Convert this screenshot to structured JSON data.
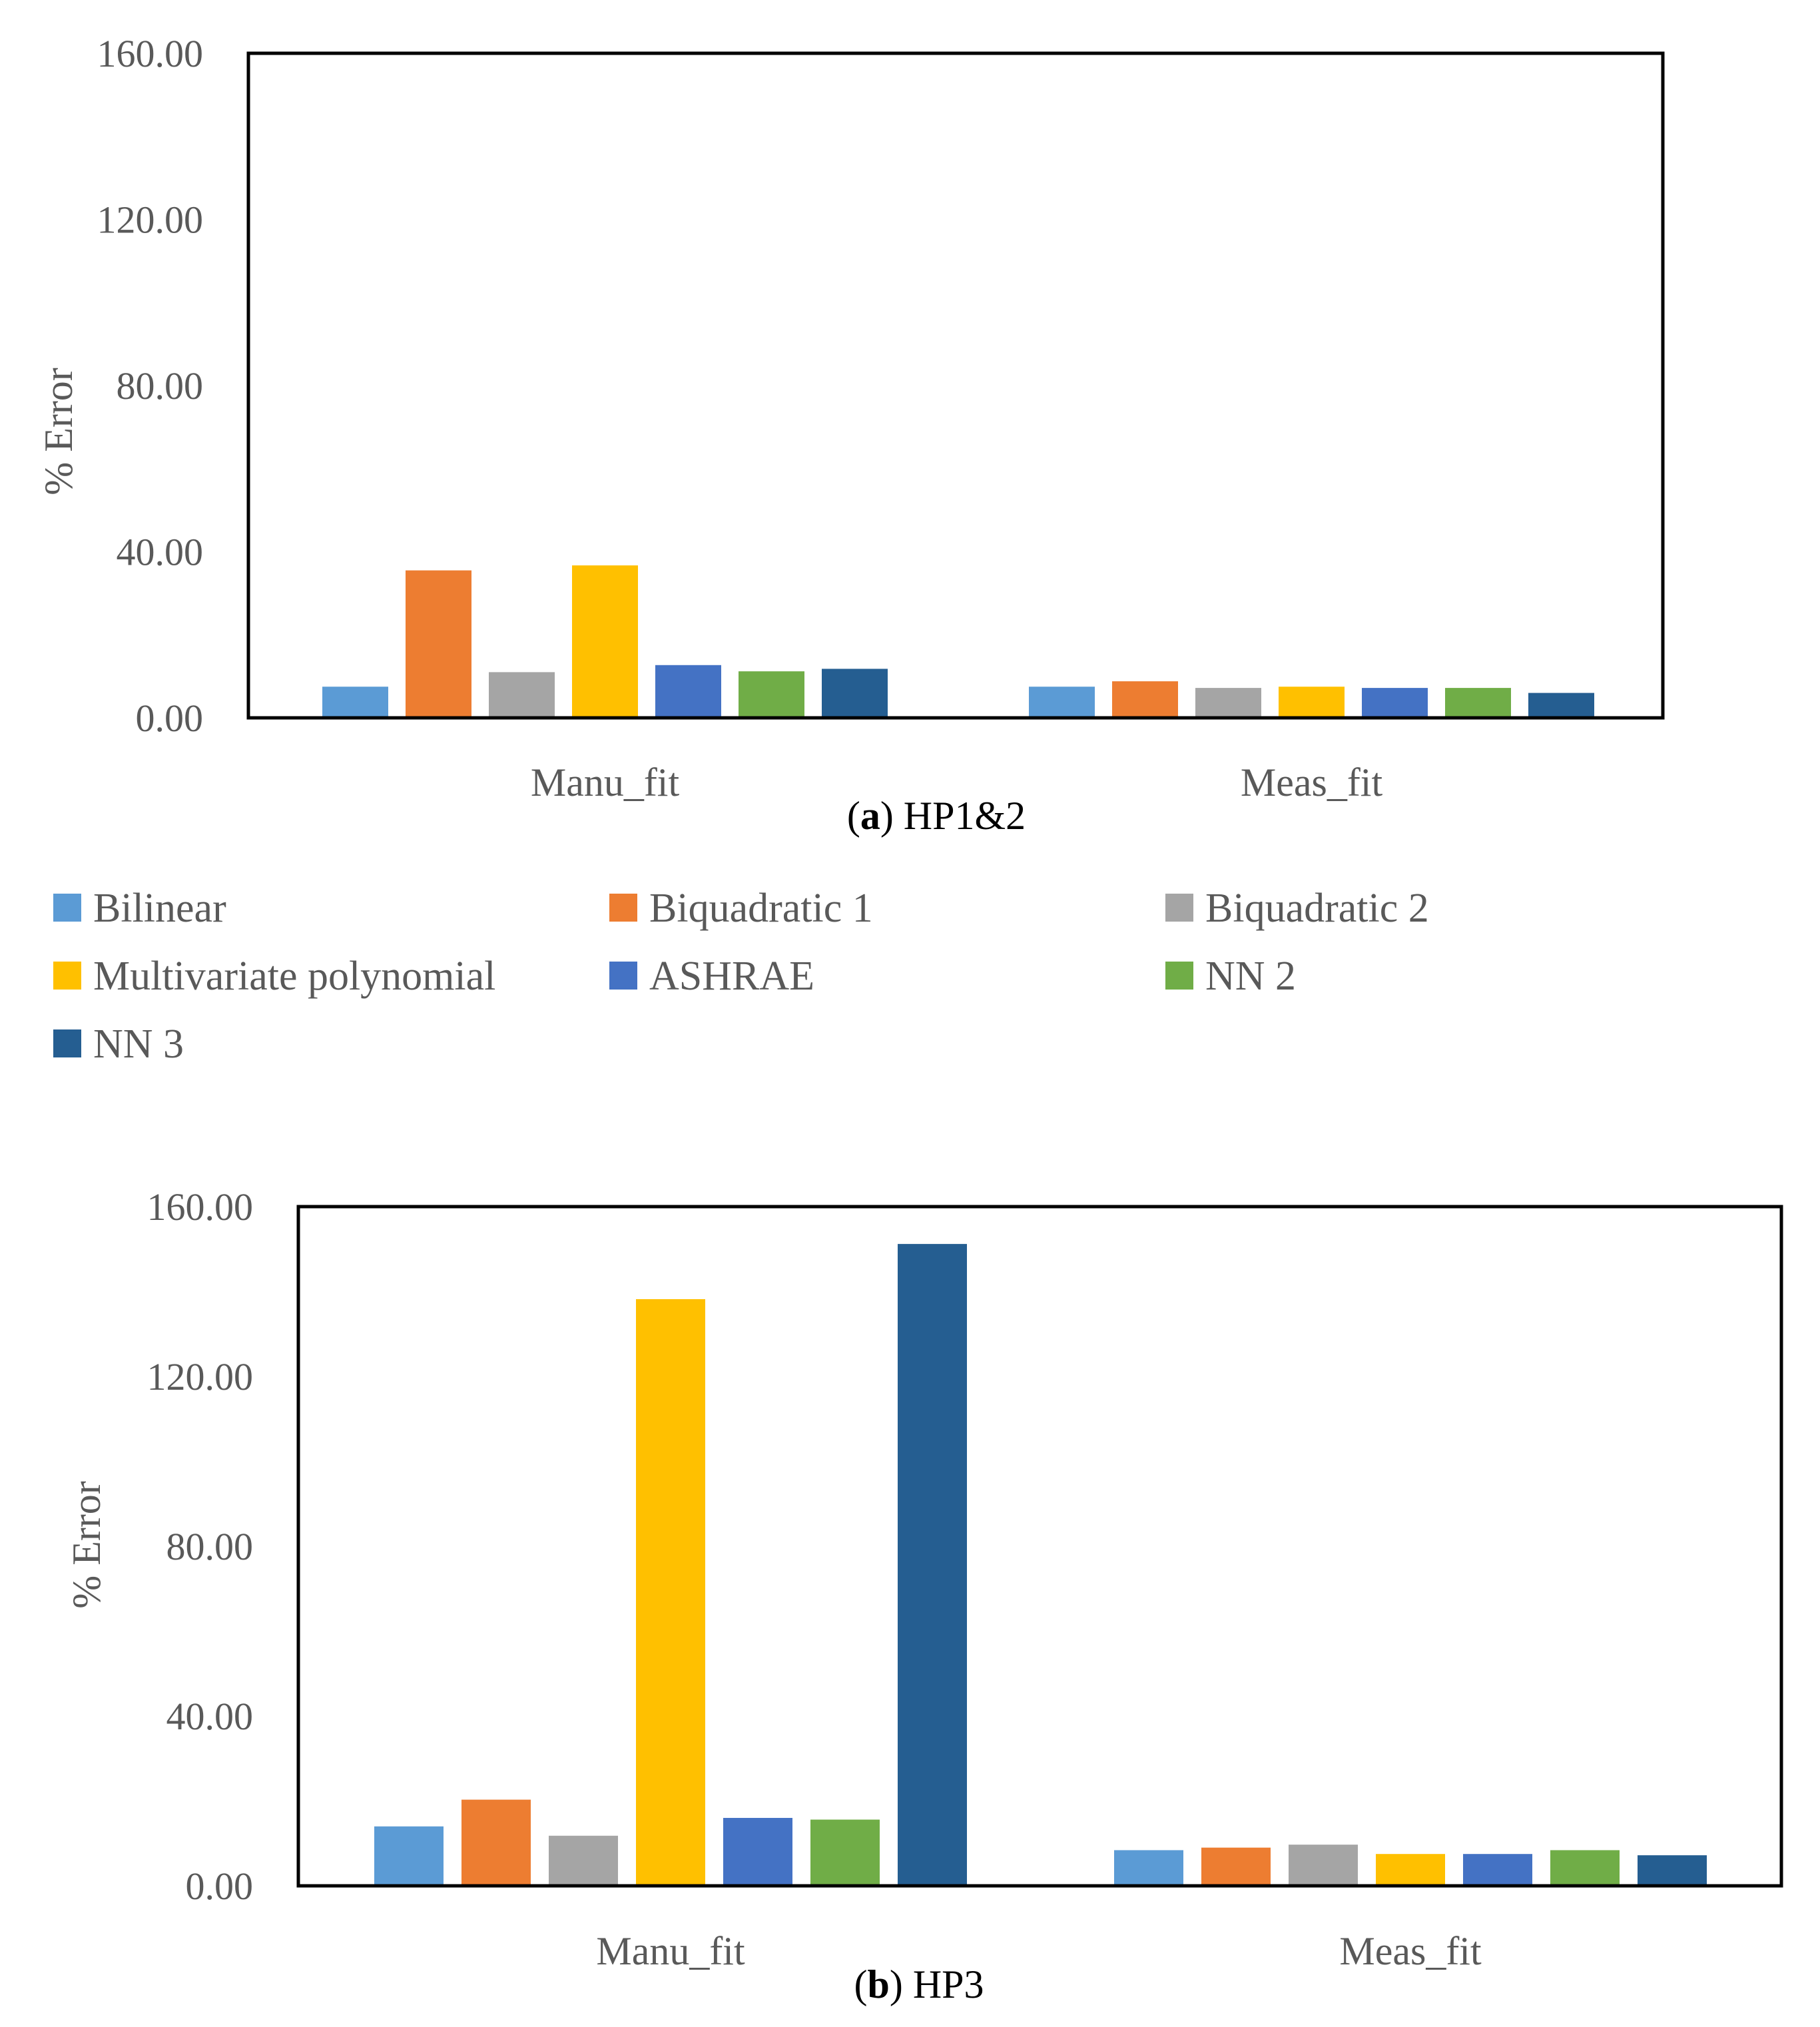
{
  "colors": {
    "Bilinear": "#5B9BD5",
    "Biquadratic 1": "#ED7D31",
    "Biquadratic 2": "#A5A5A5",
    "Multivariate polynomial": "#FFC000",
    "ASHRAE": "#4472C4",
    "NN 2": "#70AD47",
    "NN 3": "#255E91",
    "axis_text": "#595959",
    "frame": "#000000"
  },
  "legend": {
    "items": [
      "Bilinear",
      "Biquadratic 1",
      "Biquadratic 2",
      "Multivariate polynomial",
      "ASHRAE",
      "NN 2",
      "NN 3"
    ]
  },
  "chart_data": [
    {
      "type": "bar",
      "caption_letter": "a",
      "caption_text": " HP1&2",
      "ylabel": "% Error",
      "xlabel": "",
      "ylim": [
        0,
        160
      ],
      "yticks": [
        "0.00",
        "40.00",
        "80.00",
        "120.00",
        "160.00"
      ],
      "categories": [
        "Manu_fit",
        "Meas_fit"
      ],
      "series": [
        {
          "name": "Bilinear",
          "values": [
            7.5,
            7.5
          ]
        },
        {
          "name": "Biquadratic 1",
          "values": [
            35.5,
            8.8
          ]
        },
        {
          "name": "Biquadratic 2",
          "values": [
            11.0,
            7.2
          ]
        },
        {
          "name": "Multivariate polynomial",
          "values": [
            36.7,
            7.5
          ]
        },
        {
          "name": "ASHRAE",
          "values": [
            12.7,
            7.2
          ]
        },
        {
          "name": "NN 2",
          "values": [
            11.2,
            7.2
          ]
        },
        {
          "name": "NN 3",
          "values": [
            11.8,
            6.0
          ]
        }
      ]
    },
    {
      "type": "bar",
      "caption_letter": "b",
      "caption_text": " HP3",
      "ylabel": "% Error",
      "xlabel": "",
      "ylim": [
        0,
        160
      ],
      "yticks": [
        "0.00",
        "40.00",
        "80.00",
        "120.00",
        "160.00"
      ],
      "categories": [
        "Manu_fit",
        "Meas_fit"
      ],
      "series": [
        {
          "name": "Bilinear",
          "values": [
            14.0,
            8.4
          ]
        },
        {
          "name": "Biquadratic 1",
          "values": [
            20.3,
            9.0
          ]
        },
        {
          "name": "Biquadratic 2",
          "values": [
            11.8,
            9.7
          ]
        },
        {
          "name": "Multivariate polynomial",
          "values": [
            138.2,
            7.5
          ]
        },
        {
          "name": "ASHRAE",
          "values": [
            16.0,
            7.5
          ]
        },
        {
          "name": "NN 2",
          "values": [
            15.6,
            8.4
          ]
        },
        {
          "name": "NN 3",
          "values": [
            151.2,
            7.2
          ]
        }
      ]
    }
  ]
}
